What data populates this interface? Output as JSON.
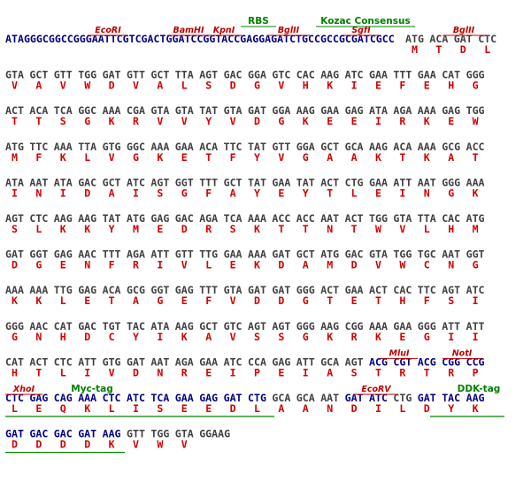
{
  "lines": [
    {
      "leader": "ATAGGGCGGCCGGGAATTCGTCGACTGGATCCGGTACCGAGGAGATCTGCCGCCGCGATCGCC",
      "codons": [
        "ATG",
        "ACA",
        "GAT",
        "CTC"
      ],
      "aminoacids": [
        "M",
        "T",
        "D",
        "L"
      ],
      "annotations": [
        "EcoRI",
        "BamHI",
        "KpnI",
        "BglII",
        "SgfI",
        "BglII",
        "RBS",
        "Kozac Consensus"
      ]
    },
    {
      "codons": [
        "GTA",
        "GCT",
        "GTT",
        "TGG",
        "GAT",
        "GTT",
        "GCT",
        "TTA",
        "AGT",
        "GAC",
        "GGA",
        "GTC",
        "CAC",
        "AAG",
        "ATC",
        "GAA",
        "TTT",
        "GAA",
        "CAT",
        "GGG"
      ],
      "aminoacids": [
        "V",
        "A",
        "V",
        "W",
        "D",
        "V",
        "A",
        "L",
        "S",
        "D",
        "G",
        "V",
        "H",
        "K",
        "I",
        "E",
        "F",
        "E",
        "H",
        "G"
      ]
    },
    {
      "codons": [
        "ACT",
        "ACA",
        "TCA",
        "GGC",
        "AAA",
        "CGA",
        "GTA",
        "GTA",
        "TAT",
        "GTA",
        "GAT",
        "GGA",
        "AAG",
        "GAA",
        "GAG",
        "ATA",
        "AGA",
        "AAA",
        "GAG",
        "TGG"
      ],
      "aminoacids": [
        "T",
        "T",
        "S",
        "G",
        "K",
        "R",
        "V",
        "V",
        "Y",
        "V",
        "D",
        "G",
        "K",
        "E",
        "E",
        "I",
        "R",
        "K",
        "E",
        "W"
      ]
    },
    {
      "codons": [
        "ATG",
        "TTC",
        "AAA",
        "TTA",
        "GTG",
        "GGC",
        "AAA",
        "GAA",
        "ACA",
        "TTC",
        "TAT",
        "GTT",
        "GGA",
        "GCT",
        "GCA",
        "AAG",
        "ACA",
        "AAA",
        "GCG",
        "ACC"
      ],
      "aminoacids": [
        "M",
        "F",
        "K",
        "L",
        "V",
        "G",
        "K",
        "E",
        "T",
        "F",
        "Y",
        "V",
        "G",
        "A",
        "A",
        "K",
        "T",
        "K",
        "A",
        "T"
      ]
    },
    {
      "codons": [
        "ATA",
        "AAT",
        "ATA",
        "GAC",
        "GCT",
        "ATC",
        "AGT",
        "GGT",
        "TTT",
        "GCT",
        "TAT",
        "GAA",
        "TAT",
        "ACT",
        "CTG",
        "GAA",
        "ATT",
        "AAT",
        "GGG",
        "AAA"
      ],
      "aminoacids": [
        "I",
        "N",
        "I",
        "D",
        "A",
        "I",
        "S",
        "G",
        "F",
        "A",
        "Y",
        "E",
        "Y",
        "T",
        "L",
        "E",
        "I",
        "N",
        "G",
        "K"
      ]
    },
    {
      "codons": [
        "AGT",
        "CTC",
        "AAG",
        "AAG",
        "TAT",
        "ATG",
        "GAG",
        "GAC",
        "AGA",
        "TCA",
        "AAA",
        "ACC",
        "ACC",
        "AAT",
        "ACT",
        "TGG",
        "GTA",
        "TTA",
        "CAC",
        "ATG"
      ],
      "aminoacids": [
        "S",
        "L",
        "K",
        "K",
        "Y",
        "M",
        "E",
        "D",
        "R",
        "S",
        "K",
        "T",
        "T",
        "N",
        "T",
        "W",
        "V",
        "L",
        "H",
        "M"
      ]
    },
    {
      "codons": [
        "GAT",
        "GGT",
        "GAG",
        "AAC",
        "TTT",
        "AGA",
        "ATT",
        "GTT",
        "TTG",
        "GAA",
        "AAA",
        "GAT",
        "GCT",
        "ATG",
        "GAC",
        "GTA",
        "TGG",
        "TGC",
        "AAT",
        "GGT"
      ],
      "aminoacids": [
        "D",
        "G",
        "E",
        "N",
        "F",
        "R",
        "I",
        "V",
        "L",
        "E",
        "K",
        "D",
        "A",
        "M",
        "D",
        "V",
        "W",
        "C",
        "N",
        "G"
      ]
    },
    {
      "codons": [
        "AAA",
        "AAA",
        "TTG",
        "GAG",
        "ACA",
        "GCG",
        "GGT",
        "GAG",
        "TTT",
        "GTA",
        "GAT",
        "GAT",
        "GGG",
        "ACT",
        "GAA",
        "ACT",
        "CAC",
        "TTC",
        "AGT",
        "ATC"
      ],
      "aminoacids": [
        "K",
        "K",
        "L",
        "E",
        "T",
        "A",
        "G",
        "E",
        "F",
        "V",
        "D",
        "D",
        "G",
        "T",
        "E",
        "T",
        "H",
        "F",
        "S",
        "I"
      ]
    },
    {
      "codons": [
        "GGG",
        "AAC",
        "CAT",
        "GAC",
        "TGT",
        "TAC",
        "ATA",
        "AAG",
        "GCT",
        "GTC",
        "AGT",
        "AGT",
        "GGG",
        "AAG",
        "CGG",
        "AAA",
        "GAA",
        "GGG",
        "ATT",
        "ATT"
      ],
      "aminoacids": [
        "G",
        "N",
        "H",
        "D",
        "C",
        "Y",
        "I",
        "K",
        "A",
        "V",
        "S",
        "S",
        "G",
        "K",
        "R",
        "K",
        "E",
        "G",
        "I",
        "I"
      ]
    },
    {
      "codons": [
        "CAT",
        "ACT",
        "CTC",
        "ATT",
        "GTG",
        "GAT",
        "AAT",
        "AGA",
        "GAA",
        "ATC",
        "CCA",
        "GAG",
        "ATT",
        "GCA",
        "AGT",
        "ACG",
        "CGT",
        "ACG",
        "CGG",
        "CCG"
      ],
      "aminoacids": [
        "H",
        "T",
        "L",
        "I",
        "V",
        "D",
        "N",
        "R",
        "E",
        "I",
        "P",
        "E",
        "I",
        "A",
        "S",
        "T",
        "R",
        "T",
        "R",
        "P"
      ],
      "annotations": [
        "MluI",
        "NotI"
      ]
    },
    {
      "codons": [
        "CTC",
        "GAG",
        "CAG",
        "AAA",
        "CTC",
        "ATC",
        "TCA",
        "GAA",
        "GAG",
        "GAT",
        "CTG",
        "GCA",
        "GCA",
        "AAT",
        "GAT",
        "ATC",
        "CTG",
        "GAT",
        "TAC",
        "AAG"
      ],
      "aminoacids": [
        "L",
        "E",
        "Q",
        "K",
        "L",
        "I",
        "S",
        "E",
        "E",
        "D",
        "L",
        "A",
        "A",
        "N",
        "D",
        "I",
        "L",
        "D",
        "Y",
        "K"
      ],
      "annotations": [
        "XhoI",
        "Myc-tag",
        "EcoRV",
        "DDK-tag"
      ]
    },
    {
      "codons": [
        "GAT",
        "GAC",
        "GAC",
        "GAT",
        "AAG",
        "GTT",
        "TGG",
        "GTA",
        "GGAAG"
      ],
      "aminoacids": [
        "D",
        "D",
        "D",
        "D",
        "K",
        "V",
        "W",
        "V"
      ]
    }
  ]
}
